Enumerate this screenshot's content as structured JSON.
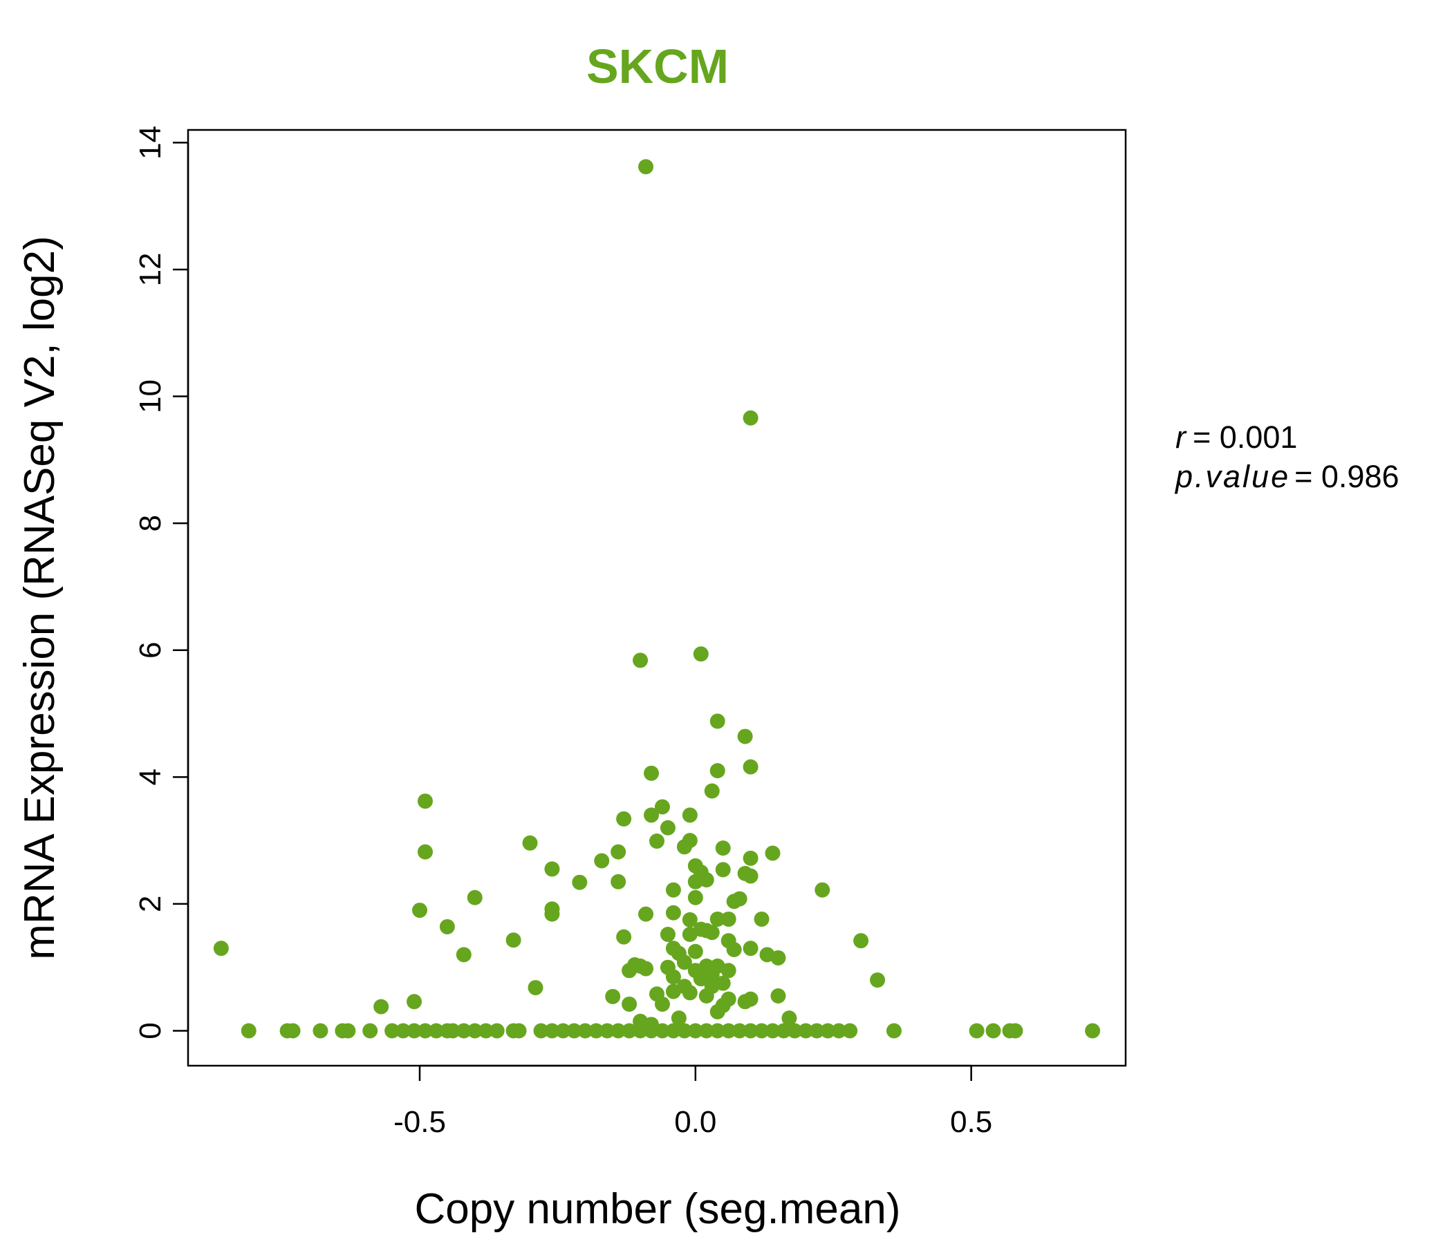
{
  "chart_data": {
    "type": "scatter",
    "title": "SKCM",
    "title_color": "#66a61e",
    "point_color": "#66a61e",
    "xlabel": "Copy number (seg.mean)",
    "ylabel": "mRNA Expression (RNASeq V2, log2)",
    "xlim": [
      -0.92,
      0.78
    ],
    "ylim": [
      -0.55,
      14.2
    ],
    "x_ticks": [
      -0.5,
      0.0,
      0.5
    ],
    "x_tick_labels": [
      "-0.5",
      "0.0",
      "0.5"
    ],
    "y_ticks": [
      0,
      2,
      4,
      6,
      8,
      10,
      12,
      14
    ],
    "y_tick_labels": [
      "0",
      "2",
      "4",
      "6",
      "8",
      "10",
      "12",
      "14"
    ],
    "grid": false,
    "annotations": {
      "r_label": "r",
      "r_value": "= 0.001",
      "p_label": "p.value",
      "p_value": "= 0.986"
    },
    "points": [
      {
        "x": -0.86,
        "y": 1.3
      },
      {
        "x": -0.81,
        "y": 0.0
      },
      {
        "x": -0.74,
        "y": 0.0
      },
      {
        "x": -0.73,
        "y": 0.0
      },
      {
        "x": -0.68,
        "y": 0.0
      },
      {
        "x": -0.64,
        "y": 0.0
      },
      {
        "x": -0.63,
        "y": 0.0
      },
      {
        "x": -0.59,
        "y": 0.0
      },
      {
        "x": -0.57,
        "y": 0.38
      },
      {
        "x": -0.55,
        "y": 0.0
      },
      {
        "x": -0.53,
        "y": 0.0
      },
      {
        "x": -0.51,
        "y": 0.0
      },
      {
        "x": -0.51,
        "y": 0.46
      },
      {
        "x": -0.5,
        "y": 1.9
      },
      {
        "x": -0.49,
        "y": 0.0
      },
      {
        "x": -0.47,
        "y": 0.0
      },
      {
        "x": -0.45,
        "y": 0.0
      },
      {
        "x": -0.44,
        "y": 0.0
      },
      {
        "x": -0.42,
        "y": 0.0
      },
      {
        "x": -0.4,
        "y": 0.0
      },
      {
        "x": -0.38,
        "y": 0.0
      },
      {
        "x": -0.36,
        "y": 0.0
      },
      {
        "x": -0.33,
        "y": 0.0
      },
      {
        "x": -0.32,
        "y": 0.0
      },
      {
        "x": -0.28,
        "y": 0.0
      },
      {
        "x": -0.26,
        "y": 0.0
      },
      {
        "x": -0.24,
        "y": 0.0
      },
      {
        "x": -0.22,
        "y": 0.0
      },
      {
        "x": -0.2,
        "y": 0.0
      },
      {
        "x": -0.18,
        "y": 0.0
      },
      {
        "x": -0.16,
        "y": 0.0
      },
      {
        "x": -0.14,
        "y": 0.0
      },
      {
        "x": -0.12,
        "y": 0.0
      },
      {
        "x": -0.1,
        "y": 0.0
      },
      {
        "x": -0.08,
        "y": 0.0
      },
      {
        "x": -0.06,
        "y": 0.0
      },
      {
        "x": -0.04,
        "y": 0.0
      },
      {
        "x": -0.02,
        "y": 0.0
      },
      {
        "x": 0.0,
        "y": 0.0
      },
      {
        "x": 0.02,
        "y": 0.0
      },
      {
        "x": 0.04,
        "y": 0.0
      },
      {
        "x": 0.06,
        "y": 0.0
      },
      {
        "x": 0.08,
        "y": 0.0
      },
      {
        "x": 0.1,
        "y": 0.0
      },
      {
        "x": 0.12,
        "y": 0.0
      },
      {
        "x": 0.14,
        "y": 0.0
      },
      {
        "x": 0.16,
        "y": 0.0
      },
      {
        "x": 0.18,
        "y": 0.0
      },
      {
        "x": 0.2,
        "y": 0.0
      },
      {
        "x": 0.22,
        "y": 0.0
      },
      {
        "x": 0.24,
        "y": 0.0
      },
      {
        "x": 0.26,
        "y": 0.0
      },
      {
        "x": 0.28,
        "y": 0.0
      },
      {
        "x": 0.36,
        "y": 0.0
      },
      {
        "x": 0.51,
        "y": 0.0
      },
      {
        "x": 0.54,
        "y": 0.0
      },
      {
        "x": 0.57,
        "y": 0.0
      },
      {
        "x": 0.58,
        "y": 0.0
      },
      {
        "x": 0.72,
        "y": 0.0
      },
      {
        "x": -0.49,
        "y": 3.62
      },
      {
        "x": -0.49,
        "y": 2.82
      },
      {
        "x": -0.45,
        "y": 1.64
      },
      {
        "x": -0.42,
        "y": 1.2
      },
      {
        "x": -0.4,
        "y": 2.1
      },
      {
        "x": -0.33,
        "y": 1.43
      },
      {
        "x": -0.3,
        "y": 2.96
      },
      {
        "x": -0.29,
        "y": 0.68
      },
      {
        "x": -0.26,
        "y": 2.55
      },
      {
        "x": -0.26,
        "y": 1.92
      },
      {
        "x": -0.26,
        "y": 1.84
      },
      {
        "x": -0.21,
        "y": 2.34
      },
      {
        "x": -0.17,
        "y": 2.68
      },
      {
        "x": -0.15,
        "y": 0.54
      },
      {
        "x": -0.14,
        "y": 2.35
      },
      {
        "x": -0.14,
        "y": 2.82
      },
      {
        "x": -0.13,
        "y": 1.48
      },
      {
        "x": -0.13,
        "y": 3.34
      },
      {
        "x": -0.12,
        "y": 0.95
      },
      {
        "x": -0.12,
        "y": 0.42
      },
      {
        "x": -0.11,
        "y": 1.04
      },
      {
        "x": -0.1,
        "y": 1.02
      },
      {
        "x": -0.09,
        "y": 1.84
      },
      {
        "x": -0.09,
        "y": 0.98
      },
      {
        "x": -0.08,
        "y": 4.06
      },
      {
        "x": -0.08,
        "y": 3.4
      },
      {
        "x": -0.07,
        "y": 2.99
      },
      {
        "x": -0.07,
        "y": 0.58
      },
      {
        "x": -0.06,
        "y": 3.53
      },
      {
        "x": -0.06,
        "y": 0.42
      },
      {
        "x": -0.05,
        "y": 3.2
      },
      {
        "x": -0.05,
        "y": 1.52
      },
      {
        "x": -0.05,
        "y": 1.0
      },
      {
        "x": -0.04,
        "y": 2.22
      },
      {
        "x": -0.04,
        "y": 1.86
      },
      {
        "x": -0.04,
        "y": 1.3
      },
      {
        "x": -0.04,
        "y": 0.85
      },
      {
        "x": -0.04,
        "y": 0.62
      },
      {
        "x": -0.03,
        "y": 1.22
      },
      {
        "x": -0.02,
        "y": 2.9
      },
      {
        "x": -0.02,
        "y": 1.08
      },
      {
        "x": -0.02,
        "y": 0.7
      },
      {
        "x": -0.01,
        "y": 3.0
      },
      {
        "x": -0.01,
        "y": 1.52
      },
      {
        "x": -0.01,
        "y": 0.6
      },
      {
        "x": -0.01,
        "y": 3.4
      },
      {
        "x": -0.01,
        "y": 1.75
      },
      {
        "x": 0.0,
        "y": 2.6
      },
      {
        "x": 0.0,
        "y": 2.35
      },
      {
        "x": 0.0,
        "y": 2.1
      },
      {
        "x": 0.0,
        "y": 1.25
      },
      {
        "x": 0.0,
        "y": 0.95
      },
      {
        "x": 0.01,
        "y": 2.5
      },
      {
        "x": 0.01,
        "y": 1.6
      },
      {
        "x": 0.01,
        "y": 0.82
      },
      {
        "x": 0.02,
        "y": 2.38
      },
      {
        "x": 0.02,
        "y": 1.58
      },
      {
        "x": 0.02,
        "y": 1.02
      },
      {
        "x": 0.02,
        "y": 0.55
      },
      {
        "x": 0.03,
        "y": 3.78
      },
      {
        "x": 0.03,
        "y": 1.55
      },
      {
        "x": 0.03,
        "y": 0.88
      },
      {
        "x": 0.03,
        "y": 0.7
      },
      {
        "x": 0.04,
        "y": 4.1
      },
      {
        "x": 0.04,
        "y": 1.76
      },
      {
        "x": 0.04,
        "y": 1.02
      },
      {
        "x": 0.04,
        "y": 0.3
      },
      {
        "x": 0.05,
        "y": 2.88
      },
      {
        "x": 0.05,
        "y": 2.54
      },
      {
        "x": 0.05,
        "y": 0.75
      },
      {
        "x": 0.05,
        "y": 0.4
      },
      {
        "x": 0.06,
        "y": 1.76
      },
      {
        "x": 0.06,
        "y": 1.42
      },
      {
        "x": 0.06,
        "y": 0.95
      },
      {
        "x": 0.06,
        "y": 0.5
      },
      {
        "x": 0.07,
        "y": 2.04
      },
      {
        "x": 0.07,
        "y": 1.28
      },
      {
        "x": 0.08,
        "y": 2.08
      },
      {
        "x": 0.09,
        "y": 2.48
      },
      {
        "x": 0.09,
        "y": 0.46
      },
      {
        "x": 0.1,
        "y": 1.3
      },
      {
        "x": 0.1,
        "y": 0.5
      },
      {
        "x": 0.1,
        "y": 2.44
      },
      {
        "x": 0.1,
        "y": 2.72
      },
      {
        "x": 0.12,
        "y": 1.76
      },
      {
        "x": 0.13,
        "y": 1.2
      },
      {
        "x": 0.14,
        "y": 2.8
      },
      {
        "x": 0.15,
        "y": 0.55
      },
      {
        "x": 0.15,
        "y": 1.15
      },
      {
        "x": 0.17,
        "y": 0.2
      },
      {
        "x": 0.23,
        "y": 2.22
      },
      {
        "x": 0.3,
        "y": 1.42
      },
      {
        "x": 0.33,
        "y": 0.8
      },
      {
        "x": -0.1,
        "y": 0.15
      },
      {
        "x": -0.08,
        "y": 0.1
      },
      {
        "x": -0.03,
        "y": 0.2
      },
      {
        "x": 0.09,
        "y": 4.64
      },
      {
        "x": 0.1,
        "y": 4.16
      },
      {
        "x": 0.04,
        "y": 4.88
      },
      {
        "x": 0.01,
        "y": 5.94
      },
      {
        "x": -0.1,
        "y": 5.84
      },
      {
        "x": 0.1,
        "y": 9.66
      },
      {
        "x": -0.09,
        "y": 13.62
      }
    ]
  }
}
